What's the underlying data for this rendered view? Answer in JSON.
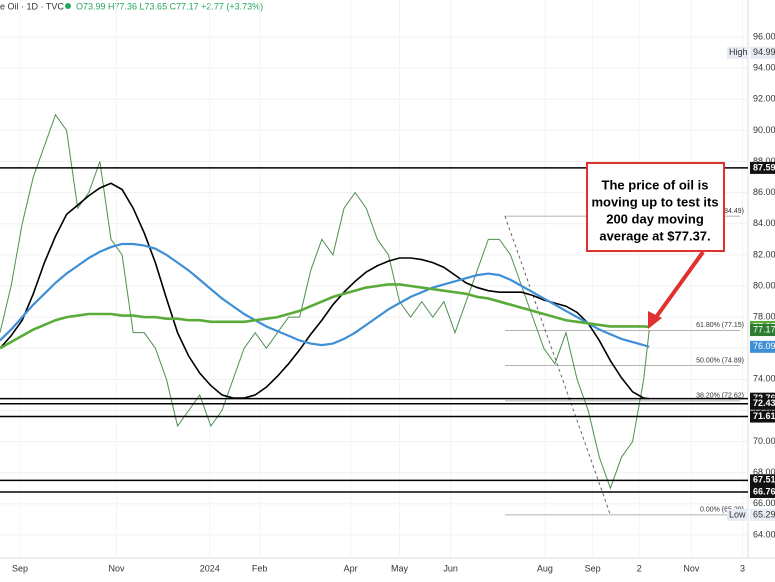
{
  "chart_data": {
    "type": "line",
    "header": {
      "symbol": "e Oil · 1D · TVC",
      "ohlc": "O73.99 H77.36 L73.65 C77.17 +2.77 (+3.73%)"
    },
    "annotation": [
      "The price of oil is",
      "moving up to test its",
      "200 day moving",
      "average at $77.37."
    ],
    "x": [
      0,
      1,
      2,
      3,
      4,
      5,
      6,
      7,
      8,
      9,
      10,
      11,
      12,
      13,
      14,
      15,
      16,
      17,
      18,
      19,
      20,
      21,
      22,
      23,
      24,
      25,
      26,
      27,
      28,
      29,
      30,
      31,
      32,
      33,
      34,
      35,
      36,
      37,
      38,
      39,
      40,
      41,
      42,
      43,
      44,
      45,
      46,
      47,
      48,
      49,
      50,
      51,
      52,
      53,
      54,
      55,
      56,
      57,
      58,
      58.5
    ],
    "xlim": [
      0,
      67.4
    ],
    "xticks": [
      {
        "value": 1.8,
        "label": "Sep"
      },
      {
        "value": 10.5,
        "label": "Nov"
      },
      {
        "value": 18.9,
        "label": "2024"
      },
      {
        "value": 23.4,
        "label": "Feb"
      },
      {
        "value": 31.6,
        "label": "Apr"
      },
      {
        "value": 36,
        "label": "May"
      },
      {
        "value": 40.6,
        "label": "Jun"
      },
      {
        "value": 49.1,
        "label": "Aug"
      },
      {
        "value": 53.4,
        "label": "Sep"
      },
      {
        "value": 57.6,
        "label": "2"
      },
      {
        "value": 62.3,
        "label": "Nov"
      },
      {
        "value": 66.9,
        "label": "3"
      }
    ],
    "ylim": [
      62.52,
      98.38
    ],
    "yticks": [
      {
        "value": 64,
        "label": "64.00"
      },
      {
        "value": 66,
        "label": "66.00"
      },
      {
        "value": 68,
        "label": "68.00"
      },
      {
        "value": 70,
        "label": "70.00"
      },
      {
        "value": 72,
        "label": "72.00"
      },
      {
        "value": 74,
        "label": "74.00"
      },
      {
        "value": 76,
        "label": "76.00"
      },
      {
        "value": 78,
        "label": "78.00"
      },
      {
        "value": 80,
        "label": "80.00"
      },
      {
        "value": 82,
        "label": "82.00"
      },
      {
        "value": 84,
        "label": "84.00"
      },
      {
        "value": 86,
        "label": "86.00"
      },
      {
        "value": 88,
        "label": "88.00"
      },
      {
        "value": 90,
        "label": "90.00"
      },
      {
        "value": 92,
        "label": "92.00"
      },
      {
        "value": 94,
        "label": "94.00"
      },
      {
        "value": 96,
        "label": "96.00"
      }
    ],
    "series": [
      {
        "color": "#4f8f4f",
        "values": [
          77,
          80,
          84,
          87,
          89,
          91,
          90,
          85,
          86,
          88,
          83,
          82,
          77,
          77,
          76,
          74,
          71,
          72,
          73,
          71,
          72,
          74,
          76,
          77,
          76,
          77,
          78,
          78,
          81,
          83,
          82,
          85,
          86,
          85,
          83,
          82,
          79,
          78,
          79,
          78,
          79,
          77,
          79,
          81,
          83,
          83,
          82,
          80,
          78,
          76,
          75,
          77,
          74,
          72,
          69,
          67,
          69,
          70,
          74,
          77.17
        ]
      },
      {
        "color": "#000000",
        "values": [
          76.0,
          76.8,
          77.8,
          79.5,
          81.5,
          83.2,
          84.6,
          85.2,
          85.8,
          86.3,
          86.6,
          86.2,
          85.0,
          83.4,
          81.5,
          79.2,
          77.0,
          75.5,
          74.4,
          73.6,
          73.0,
          72.8,
          72.8,
          73.0,
          73.5,
          74.2,
          75.0,
          75.9,
          76.9,
          77.8,
          78.8,
          79.6,
          80.3,
          80.9,
          81.3,
          81.6,
          81.8,
          81.8,
          81.7,
          81.5,
          81.2,
          80.7,
          80.2,
          79.9,
          79.7,
          79.6,
          79.6,
          79.6,
          79.4,
          79.1,
          78.9,
          78.7,
          78.3,
          77.6,
          76.5,
          75.2,
          74.1,
          73.2,
          72.8,
          72.76
        ]
      },
      {
        "color": "#3f8fd6",
        "values": [
          76.5,
          77.2,
          78.0,
          78.8,
          79.5,
          80.2,
          80.8,
          81.3,
          81.8,
          82.2,
          82.5,
          82.7,
          82.7,
          82.6,
          82.4,
          82.0,
          81.5,
          81.0,
          80.4,
          79.8,
          79.2,
          78.7,
          78.2,
          77.8,
          77.4,
          77.1,
          76.8,
          76.5,
          76.3,
          76.2,
          76.3,
          76.6,
          77.0,
          77.5,
          78.0,
          78.5,
          78.9,
          79.3,
          79.6,
          79.9,
          80.1,
          80.3,
          80.5,
          80.7,
          80.8,
          80.7,
          80.4,
          80.0,
          79.6,
          79.2,
          78.8,
          78.4,
          78.0,
          77.6,
          77.2,
          76.9,
          76.6,
          76.4,
          76.2,
          76.09
        ]
      },
      {
        "color": "#5aab3a",
        "values": [
          76.0,
          76.4,
          76.8,
          77.2,
          77.5,
          77.8,
          78.0,
          78.1,
          78.2,
          78.2,
          78.2,
          78.1,
          78.1,
          78.0,
          78.0,
          77.9,
          77.9,
          77.8,
          77.8,
          77.7,
          77.7,
          77.7,
          77.7,
          77.8,
          77.9,
          78.0,
          78.2,
          78.4,
          78.7,
          79.0,
          79.3,
          79.5,
          79.7,
          79.9,
          80.0,
          80.1,
          80.1,
          80.0,
          79.9,
          79.8,
          79.7,
          79.6,
          79.5,
          79.3,
          79.2,
          79.0,
          78.8,
          78.6,
          78.4,
          78.2,
          78.0,
          77.8,
          77.7,
          77.6,
          77.5,
          77.4,
          77.4,
          77.4,
          77.4,
          77.37
        ]
      }
    ],
    "levels": [
      87.59,
      72.76,
      72.43,
      71.61,
      67.51,
      66.76
    ],
    "price_tags": [
      {
        "label": "High",
        "value": 94.99,
        "color": "#e8ecf4"
      },
      {
        "value": 77.37,
        "color": "#5aab3a"
      },
      {
        "value": 77.17,
        "color": "#2e7d32"
      },
      {
        "value": 76.09,
        "color": "#3f8fd6"
      },
      {
        "label": "Low",
        "value": 65.29,
        "color": "#e8ecf4"
      }
    ],
    "fib": {
      "xlim": [
        45.5,
        66.7
      ],
      "levels": [
        {
          "value": 84.49,
          "label": "84.49)"
        },
        {
          "value": 77.15,
          "label": "61.80% (77.15)"
        },
        {
          "value": 74.89,
          "label": "50.00% (74.89)"
        },
        {
          "value": 72.62,
          "label": "38.20% (72.62)"
        },
        {
          "value": 65.29,
          "label": "0.00% (65.29)"
        }
      ]
    },
    "trend_line": {
      "x": [
        45.5,
        55
      ],
      "y": [
        84.49,
        65.29
      ]
    }
  }
}
